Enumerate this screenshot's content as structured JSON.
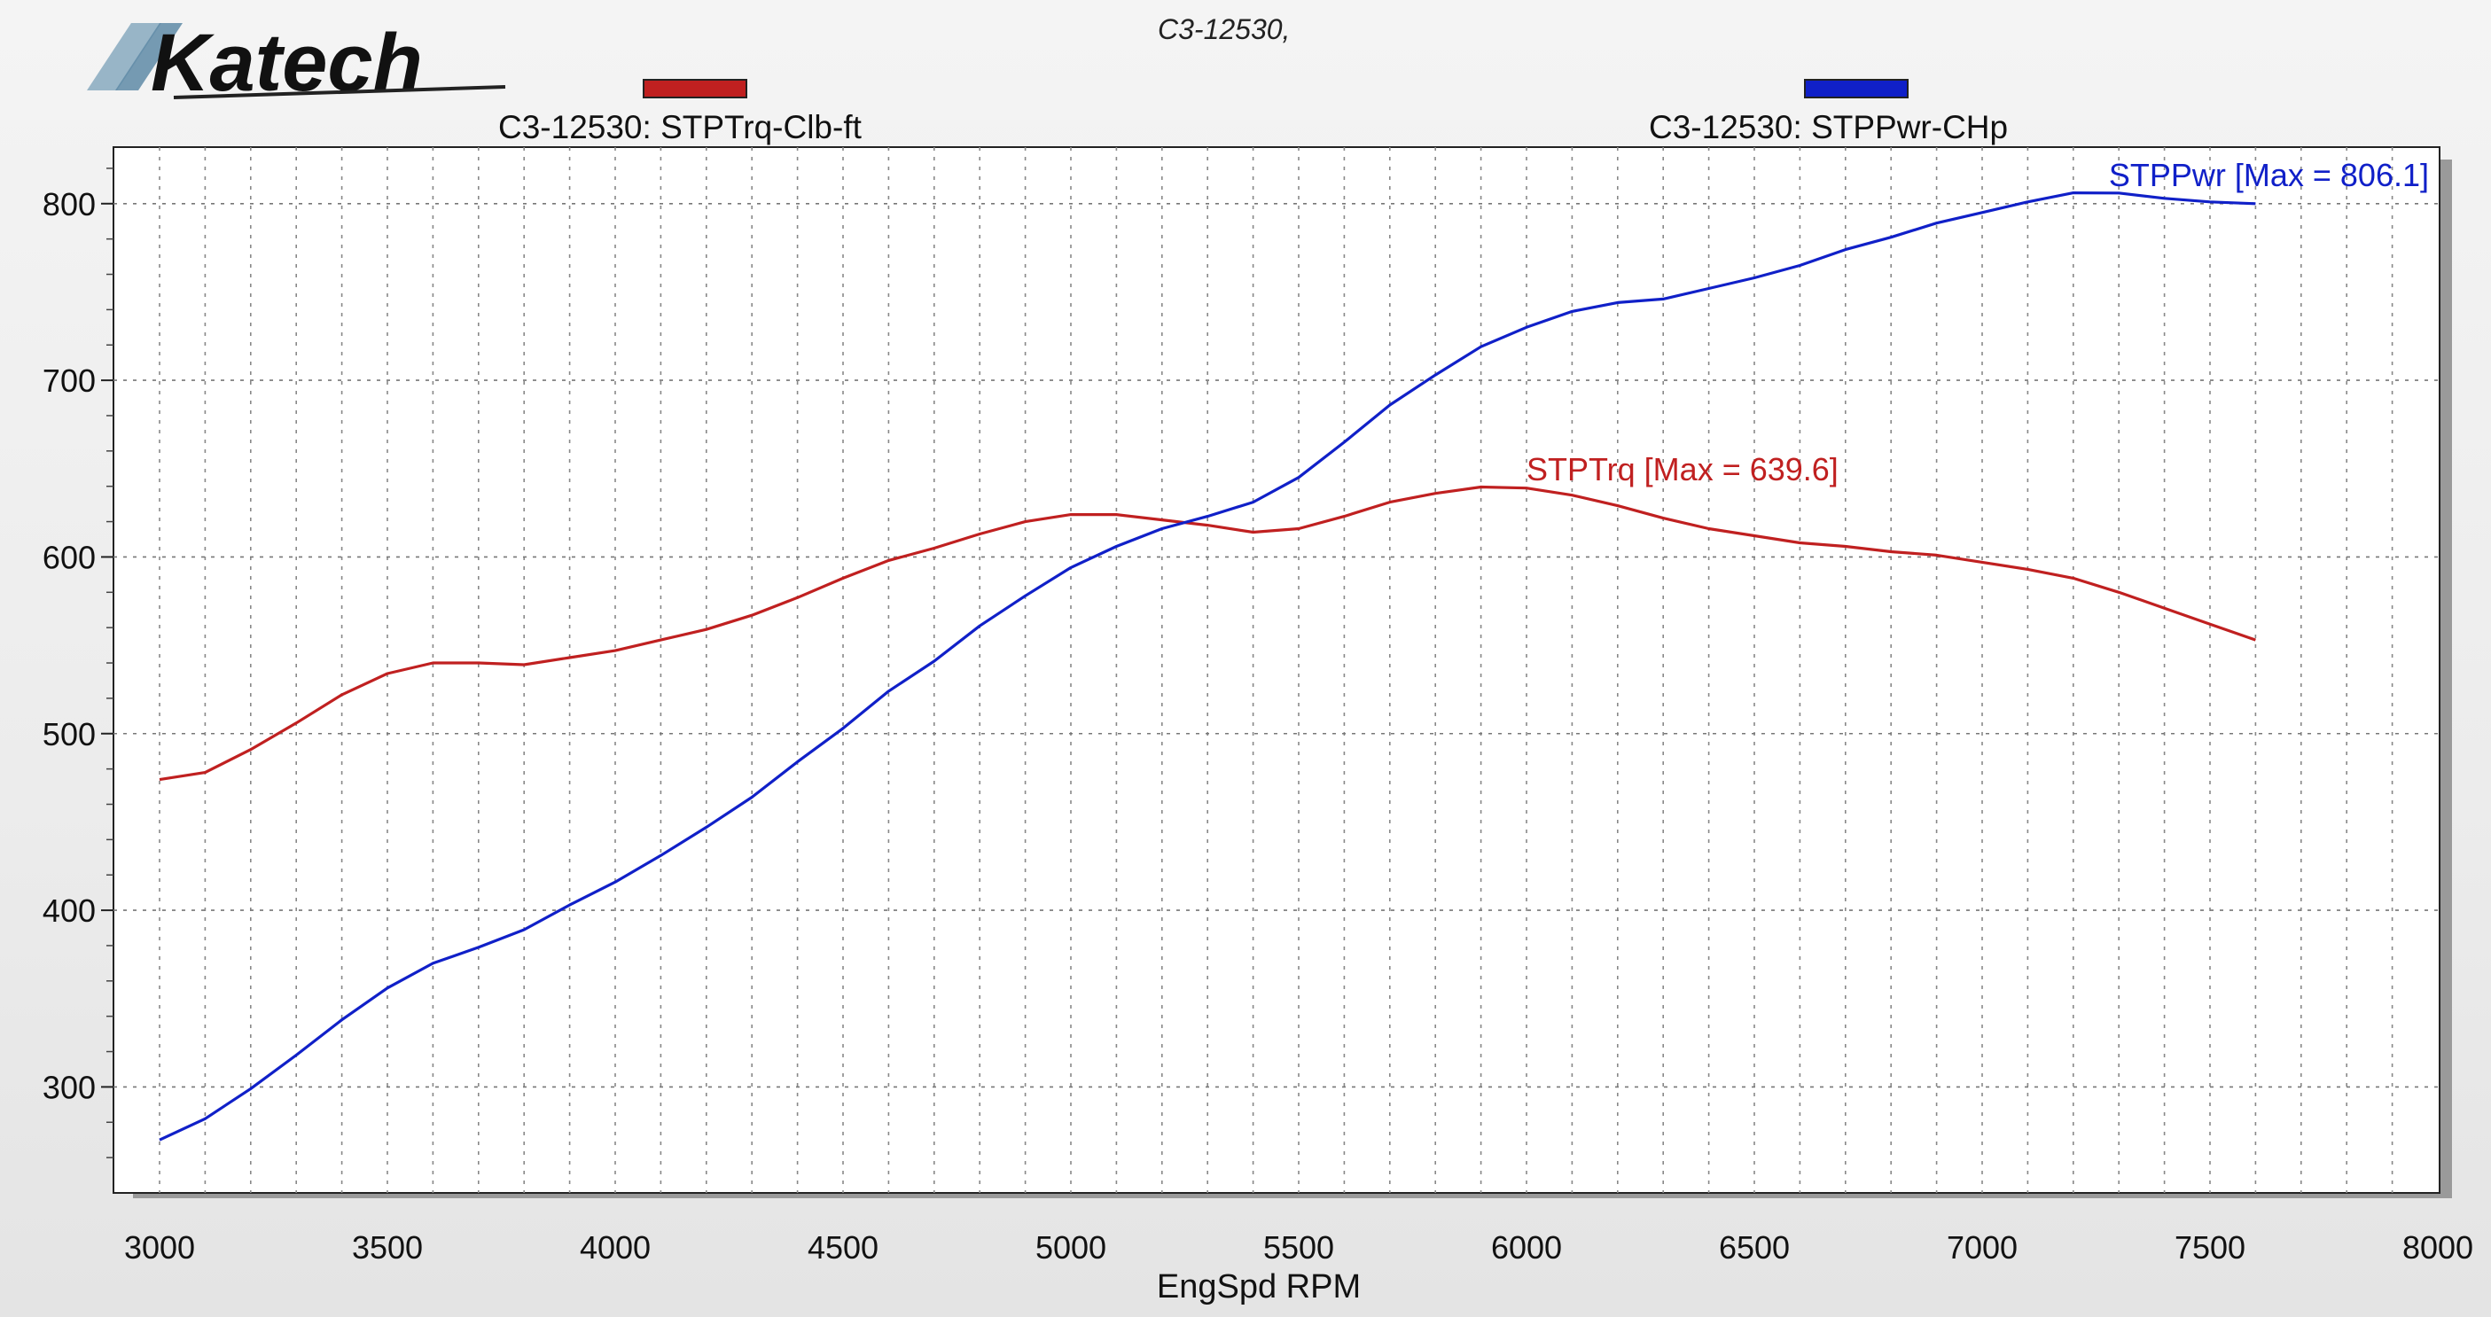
{
  "brand": {
    "logo_text": "Katech"
  },
  "chart_data": {
    "type": "line",
    "subtitle": "C3-12530,",
    "xlabel": "EngSpd RPM",
    "ylabel": "",
    "xlim": [
      3000,
      8000
    ],
    "ylim": [
      240,
      832
    ],
    "xticks": [
      3000,
      3500,
      4000,
      4500,
      5000,
      5500,
      6000,
      6500,
      7000,
      7500,
      8000
    ],
    "yticks": [
      300,
      400,
      500,
      600,
      700,
      800
    ],
    "grid": true,
    "legend_placement": "top",
    "legend": [
      {
        "label": "C3-12530: STPTrq-Clb-ft",
        "color": "#c02020"
      },
      {
        "label": "C3-12530: STPPwr-CHp",
        "color": "#1020c8"
      }
    ],
    "series": [
      {
        "name": "STPTrq",
        "color": "#c02020",
        "annotation": "STPTrq [Max = 639.6]",
        "x": [
          3000,
          3100,
          3200,
          3300,
          3400,
          3500,
          3600,
          3700,
          3800,
          3900,
          4000,
          4100,
          4200,
          4300,
          4400,
          4500,
          4600,
          4700,
          4800,
          4900,
          5000,
          5100,
          5200,
          5300,
          5400,
          5500,
          5600,
          5700,
          5800,
          5900,
          6000,
          6100,
          6200,
          6300,
          6400,
          6500,
          6600,
          6700,
          6800,
          6900,
          7000,
          7100,
          7200,
          7300,
          7400,
          7500,
          7600
        ],
        "y": [
          474,
          478,
          491,
          506,
          522,
          534,
          540,
          540,
          539,
          543,
          547,
          553,
          559,
          567,
          577,
          588,
          598,
          605,
          613,
          620,
          624,
          624,
          621,
          618,
          614,
          616,
          623,
          631,
          636,
          639.6,
          639,
          635,
          629,
          622,
          616,
          612,
          608,
          606,
          603,
          601,
          597,
          593,
          588,
          580,
          571,
          562,
          553
        ]
      },
      {
        "name": "STPPwr",
        "color": "#1020c8",
        "annotation": "STPPwr [Max = 806.1]",
        "x": [
          3000,
          3100,
          3200,
          3300,
          3400,
          3500,
          3600,
          3700,
          3800,
          3900,
          4000,
          4100,
          4200,
          4300,
          4400,
          4500,
          4600,
          4700,
          4800,
          4900,
          5000,
          5100,
          5200,
          5300,
          5400,
          5500,
          5600,
          5700,
          5800,
          5900,
          6000,
          6100,
          6200,
          6300,
          6400,
          6500,
          6600,
          6700,
          6800,
          6900,
          7000,
          7100,
          7200,
          7300,
          7400,
          7500,
          7600
        ],
        "y": [
          270,
          282,
          299,
          318,
          338,
          356,
          370,
          379,
          389,
          403,
          416,
          431,
          447,
          464,
          484,
          503,
          524,
          541,
          561,
          578,
          594,
          606,
          616,
          623,
          631,
          645,
          665,
          686,
          703,
          719,
          730,
          739,
          744,
          746,
          752,
          758,
          765,
          774,
          781,
          789,
          795,
          801,
          806.1,
          806,
          803,
          801,
          800
        ]
      }
    ]
  }
}
